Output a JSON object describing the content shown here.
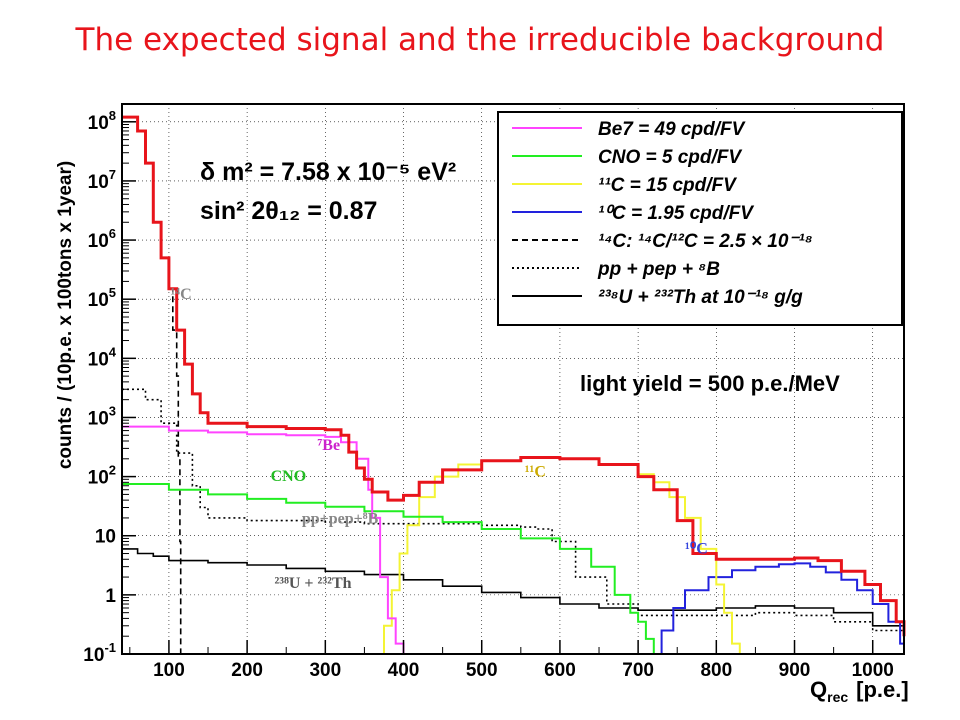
{
  "slide": {
    "title": "The expected signal and the irreducible background"
  },
  "chart_data": {
    "type": "line",
    "xlabel": {
      "main": "Q",
      "sub": "rec",
      "rest": "[p.e.]"
    },
    "ylabel": "counts / (10p.e. x 100tons x 1year)",
    "xlim": [
      40,
      1040
    ],
    "ylim": [
      0.1,
      200000000
    ],
    "yscale": "log",
    "x_ticks": [
      "100",
      "200",
      "300",
      "400",
      "500",
      "600",
      "700",
      "800",
      "900",
      "1000"
    ],
    "y_ticks": [
      {
        "v": 0.1,
        "b": "10",
        "e": "-1"
      },
      {
        "v": 1,
        "b": "1",
        "e": ""
      },
      {
        "v": 10,
        "b": "10",
        "e": ""
      },
      {
        "v": 100,
        "b": "10",
        "e": "2"
      },
      {
        "v": 1000,
        "b": "10",
        "e": "3"
      },
      {
        "v": 10000.0,
        "b": "10",
        "e": "4"
      },
      {
        "v": 100000.0,
        "b": "10",
        "e": "5"
      },
      {
        "v": 1000000.0,
        "b": "10",
        "e": "6"
      },
      {
        "v": 10000000.0,
        "b": "10",
        "e": "7"
      },
      {
        "v": 100000000.0,
        "b": "10",
        "e": "8"
      }
    ],
    "params": {
      "dm2": "δ m² = 7.58 x 10⁻⁵ eV²",
      "sin2": "sin² 2θ₁₂ = 0.87",
      "light_yield": "light yield = 500 p.e./MeV"
    },
    "legend": {
      "position": "top-right",
      "entries": [
        {
          "color": "#ff44ff",
          "style": "solid",
          "label": "Be7 = 49 cpd/FV"
        },
        {
          "color": "#22ee22",
          "style": "solid",
          "label": "CNO = 5 cpd/FV"
        },
        {
          "color": "#f4f434",
          "style": "solid",
          "label": "¹¹C = 15 cpd/FV"
        },
        {
          "color": "#2222dd",
          "style": "solid",
          "label": "¹⁰C = 1.95 cpd/FV"
        },
        {
          "color": "#000000",
          "style": "dashed",
          "label": "¹⁴C: ¹⁴C/¹²C = 2.5 × 10⁻¹⁸"
        },
        {
          "color": "#000000",
          "style": "dotted",
          "label": "pp + pep + ⁸B"
        },
        {
          "color": "#000000",
          "style": "solid",
          "label": "²³⁸U + ²³²Th at 10⁻¹⁸ g/g"
        }
      ]
    },
    "annotations": [
      {
        "text": "¹⁴C",
        "color": "#888888",
        "x": 102,
        "y": 100000
      },
      {
        "text": "⁷Be",
        "color": "#cc22cc",
        "x": 290,
        "y": 280
      },
      {
        "text": "CNO",
        "color": "#22bb22",
        "x": 230,
        "y": 85
      },
      {
        "text": "pp+pep+⁸B",
        "color": "#888888",
        "x": 270,
        "y": 16
      },
      {
        "text": "¹¹C",
        "color": "#ccaa00",
        "x": 555,
        "y": 100
      },
      {
        "text": "¹⁰C",
        "color": "#3344dd",
        "x": 760,
        "y": 5
      },
      {
        "text": "²³⁸U + ²³²Th",
        "color": "#555555",
        "x": 235,
        "y": 1.3
      }
    ],
    "series": [
      {
        "name": "Total",
        "color": "#e8141b",
        "style": "solid",
        "width": 3,
        "points": [
          [
            40,
            120000000.0
          ],
          [
            60,
            70000000.0
          ],
          [
            70,
            20000000.0
          ],
          [
            80,
            2000000.0
          ],
          [
            90,
            500000.0
          ],
          [
            100,
            150000.0
          ],
          [
            110,
            30000.0
          ],
          [
            120,
            8000
          ],
          [
            130,
            2500
          ],
          [
            140,
            1200
          ],
          [
            150,
            800
          ],
          [
            200,
            700
          ],
          [
            250,
            650
          ],
          [
            300,
            620
          ],
          [
            320,
            500
          ],
          [
            330,
            260
          ],
          [
            340,
            140
          ],
          [
            350,
            90
          ],
          [
            360,
            55
          ],
          [
            380,
            40
          ],
          [
            400,
            48
          ],
          [
            420,
            80
          ],
          [
            450,
            130
          ],
          [
            500,
            185
          ],
          [
            550,
            210
          ],
          [
            600,
            200
          ],
          [
            650,
            160
          ],
          [
            700,
            100
          ],
          [
            720,
            60
          ],
          [
            750,
            18
          ],
          [
            770,
            5
          ],
          [
            800,
            4
          ],
          [
            850,
            4
          ],
          [
            900,
            4.2
          ],
          [
            930,
            3.8
          ],
          [
            960,
            2.5
          ],
          [
            990,
            1.5
          ],
          [
            1010,
            0.8
          ],
          [
            1030,
            0.35
          ],
          [
            1040,
            0.2
          ]
        ]
      },
      {
        "name": "Be7",
        "color": "#ff44ff",
        "style": "solid",
        "width": 2,
        "points": [
          [
            40,
            700
          ],
          [
            100,
            600
          ],
          [
            150,
            560
          ],
          [
            200,
            520
          ],
          [
            250,
            500
          ],
          [
            300,
            470
          ],
          [
            320,
            380
          ],
          [
            340,
            200
          ],
          [
            355,
            60
          ],
          [
            360,
            20
          ],
          [
            370,
            2
          ],
          [
            380,
            0.4
          ],
          [
            390,
            0.15
          ],
          [
            400,
            0.1
          ]
        ]
      },
      {
        "name": "CNO",
        "color": "#22ee22",
        "style": "solid",
        "width": 2,
        "points": [
          [
            40,
            75
          ],
          [
            100,
            60
          ],
          [
            150,
            50
          ],
          [
            200,
            42
          ],
          [
            250,
            36
          ],
          [
            300,
            31
          ],
          [
            350,
            26
          ],
          [
            400,
            21
          ],
          [
            450,
            17
          ],
          [
            500,
            13
          ],
          [
            550,
            9
          ],
          [
            600,
            6
          ],
          [
            640,
            3
          ],
          [
            670,
            1
          ],
          [
            690,
            0.5
          ],
          [
            700,
            0.35
          ],
          [
            710,
            0.18
          ],
          [
            720,
            0.1
          ]
        ]
      },
      {
        "name": "11C",
        "color": "#f4f434",
        "style": "solid",
        "width": 2,
        "points": [
          [
            365,
            0.1
          ],
          [
            375,
            0.3
          ],
          [
            385,
            1.2
          ],
          [
            395,
            5
          ],
          [
            405,
            15
          ],
          [
            420,
            45
          ],
          [
            440,
            100
          ],
          [
            470,
            160
          ],
          [
            500,
            185
          ],
          [
            550,
            210
          ],
          [
            600,
            200
          ],
          [
            650,
            160
          ],
          [
            700,
            110
          ],
          [
            720,
            80
          ],
          [
            740,
            45
          ],
          [
            760,
            20
          ],
          [
            780,
            6
          ],
          [
            800,
            1.5
          ],
          [
            810,
            0.5
          ],
          [
            820,
            0.15
          ],
          [
            830,
            0.1
          ]
        ]
      },
      {
        "name": "10C",
        "color": "#2222dd",
        "style": "solid",
        "width": 2,
        "points": [
          [
            715,
            0.1
          ],
          [
            730,
            0.25
          ],
          [
            745,
            0.6
          ],
          [
            760,
            1.2
          ],
          [
            790,
            2
          ],
          [
            820,
            2.6
          ],
          [
            850,
            3
          ],
          [
            880,
            3.3
          ],
          [
            900,
            3.4
          ],
          [
            920,
            3
          ],
          [
            940,
            2.4
          ],
          [
            960,
            1.8
          ],
          [
            980,
            1.2
          ],
          [
            1000,
            0.7
          ],
          [
            1020,
            0.35
          ],
          [
            1035,
            0.15
          ],
          [
            1040,
            0.1
          ]
        ]
      },
      {
        "name": "14C",
        "color": "#000000",
        "style": "dashed",
        "width": 1.6,
        "points": [
          [
            40,
            120000000.0
          ],
          [
            60,
            70000000.0
          ],
          [
            70,
            20000000.0
          ],
          [
            80,
            2000000.0
          ],
          [
            90,
            500000.0
          ],
          [
            100,
            150000.0
          ],
          [
            105,
            30000.0
          ],
          [
            110,
            5000
          ],
          [
            112,
            200
          ],
          [
            114,
            8
          ],
          [
            115,
            0.1
          ]
        ]
      },
      {
        "name": "pp + pep + 8B",
        "color": "#000000",
        "style": "dotted",
        "width": 1.6,
        "points": [
          [
            40,
            3000
          ],
          [
            70,
            2000
          ],
          [
            90,
            800
          ],
          [
            110,
            250
          ],
          [
            130,
            70
          ],
          [
            140,
            30
          ],
          [
            150,
            20
          ],
          [
            200,
            18
          ],
          [
            300,
            17
          ],
          [
            350,
            16
          ],
          [
            400,
            16
          ],
          [
            450,
            16
          ],
          [
            500,
            15
          ],
          [
            550,
            14
          ],
          [
            570,
            13
          ],
          [
            590,
            8
          ],
          [
            620,
            2
          ],
          [
            660,
            0.7
          ],
          [
            700,
            0.45
          ],
          [
            750,
            0.45
          ],
          [
            800,
            0.45
          ],
          [
            850,
            0.5
          ],
          [
            900,
            0.45
          ],
          [
            950,
            0.35
          ],
          [
            1000,
            0.25
          ],
          [
            1040,
            0.2
          ]
        ]
      },
      {
        "name": "238U + 232Th",
        "color": "#000000",
        "style": "solid",
        "width": 1.6,
        "points": [
          [
            40,
            6
          ],
          [
            60,
            5
          ],
          [
            80,
            4.5
          ],
          [
            100,
            3.8
          ],
          [
            150,
            3.5
          ],
          [
            200,
            3.2
          ],
          [
            250,
            2.8
          ],
          [
            300,
            2.5
          ],
          [
            350,
            2.2
          ],
          [
            400,
            1.8
          ],
          [
            450,
            1.4
          ],
          [
            500,
            1.1
          ],
          [
            550,
            0.9
          ],
          [
            600,
            0.7
          ],
          [
            650,
            0.6
          ],
          [
            700,
            0.55
          ],
          [
            750,
            0.55
          ],
          [
            800,
            0.6
          ],
          [
            850,
            0.65
          ],
          [
            900,
            0.6
          ],
          [
            950,
            0.5
          ],
          [
            1000,
            0.3
          ],
          [
            1040,
            0.2
          ]
        ]
      }
    ]
  }
}
